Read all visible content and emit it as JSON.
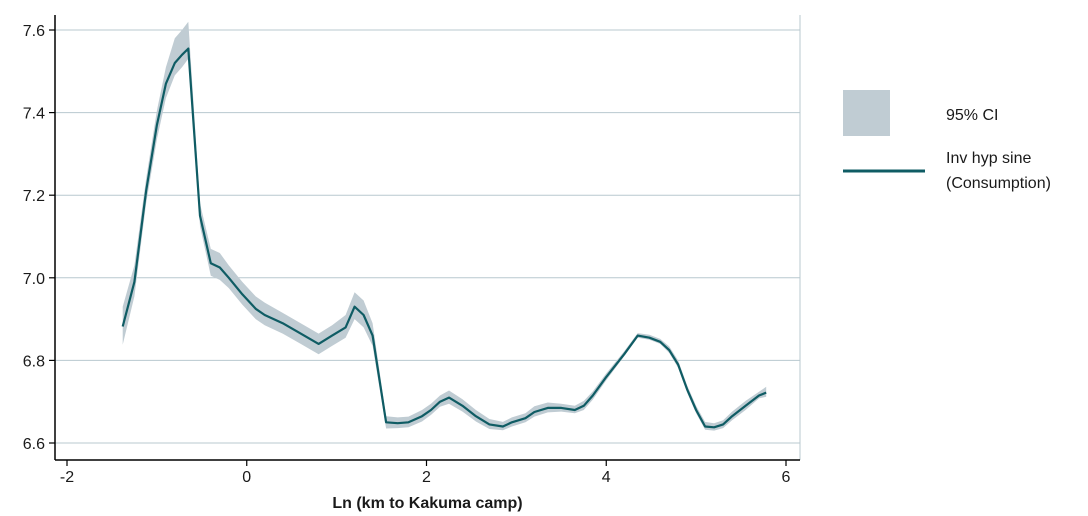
{
  "chart_data": {
    "type": "line",
    "title": "",
    "xlabel": "Ln (km to Kakuma camp)",
    "ylabel": "",
    "xlim": [
      -2.2,
      6.0
    ],
    "ylim": [
      6.58,
      7.63
    ],
    "xticks": [
      -2,
      0,
      2,
      4,
      6
    ],
    "xtick_labels": [
      "-2",
      "0",
      "2",
      "4",
      "6"
    ],
    "yticks": [
      6.6,
      6.8,
      7.0,
      7.2,
      7.4,
      7.6
    ],
    "ytick_labels": [
      "6.6",
      "6.8",
      "7.0",
      "7.2",
      "7.4",
      "7.6"
    ],
    "grid": "horizontal",
    "legend_position": "right",
    "colors": {
      "line": "#0f5c64",
      "band": "#c0ccd3",
      "grid": "#b8c8cf",
      "axis": "#000000"
    },
    "series": [
      {
        "name": "Inv hyp sine (Consumption)",
        "kind": "line",
        "x": [
          -1.38,
          -1.25,
          -1.12,
          -1.0,
          -0.9,
          -0.8,
          -0.72,
          -0.65,
          -0.52,
          -0.4,
          -0.3,
          -0.2,
          -0.05,
          0.1,
          0.2,
          0.4,
          0.6,
          0.8,
          0.95,
          1.1,
          1.2,
          1.3,
          1.4,
          1.55,
          1.68,
          1.8,
          1.95,
          2.05,
          2.15,
          2.25,
          2.4,
          2.55,
          2.7,
          2.85,
          2.95,
          3.1,
          3.2,
          3.35,
          3.5,
          3.65,
          3.75,
          3.85,
          4.0,
          4.2,
          4.35,
          4.48,
          4.6,
          4.7,
          4.8,
          4.9,
          5.0,
          5.1,
          5.2,
          5.3,
          5.4,
          5.55,
          5.7,
          5.78
        ],
        "y": [
          6.882,
          6.99,
          7.21,
          7.37,
          7.47,
          7.52,
          7.54,
          7.555,
          7.15,
          7.035,
          7.025,
          7.0,
          6.96,
          6.925,
          6.91,
          6.89,
          6.865,
          6.84,
          6.86,
          6.88,
          6.93,
          6.91,
          6.86,
          6.65,
          6.648,
          6.65,
          6.665,
          6.68,
          6.7,
          6.71,
          6.69,
          6.665,
          6.645,
          6.64,
          6.65,
          6.66,
          6.675,
          6.685,
          6.685,
          6.68,
          6.69,
          6.715,
          6.76,
          6.815,
          6.86,
          6.855,
          6.845,
          6.825,
          6.79,
          6.73,
          6.68,
          6.64,
          6.638,
          6.645,
          6.665,
          6.69,
          6.715,
          6.722
        ]
      },
      {
        "name": "95% CI",
        "kind": "band",
        "x": [
          -1.38,
          -1.25,
          -1.12,
          -1.0,
          -0.9,
          -0.8,
          -0.72,
          -0.65,
          -0.52,
          -0.4,
          -0.3,
          -0.2,
          -0.05,
          0.1,
          0.2,
          0.4,
          0.6,
          0.8,
          0.95,
          1.1,
          1.2,
          1.3,
          1.4,
          1.55,
          1.68,
          1.8,
          1.95,
          2.05,
          2.15,
          2.25,
          2.4,
          2.55,
          2.7,
          2.85,
          2.95,
          3.1,
          3.2,
          3.35,
          3.5,
          3.65,
          3.75,
          3.85,
          4.0,
          4.2,
          4.35,
          4.48,
          4.6,
          4.7,
          4.8,
          4.9,
          5.0,
          5.1,
          5.2,
          5.3,
          5.4,
          5.55,
          5.7,
          5.78
        ],
        "lower": [
          6.838,
          6.955,
          7.18,
          7.335,
          7.435,
          7.49,
          7.51,
          7.53,
          7.125,
          7.005,
          6.995,
          6.975,
          6.935,
          6.9,
          6.885,
          6.865,
          6.84,
          6.815,
          6.835,
          6.855,
          6.9,
          6.88,
          6.835,
          6.635,
          6.636,
          6.638,
          6.652,
          6.668,
          6.688,
          6.695,
          6.676,
          6.652,
          6.634,
          6.631,
          6.64,
          6.65,
          6.664,
          6.674,
          6.676,
          6.672,
          6.68,
          6.705,
          6.752,
          6.81,
          6.855,
          6.85,
          6.84,
          6.818,
          6.782,
          6.722,
          6.672,
          6.632,
          6.63,
          6.636,
          6.655,
          6.68,
          6.708,
          6.712
        ],
        "upper": [
          6.93,
          7.03,
          7.24,
          7.405,
          7.51,
          7.58,
          7.6,
          7.62,
          7.18,
          7.07,
          7.06,
          7.03,
          6.99,
          6.955,
          6.94,
          6.915,
          6.89,
          6.865,
          6.885,
          6.91,
          6.965,
          6.945,
          6.89,
          6.665,
          6.662,
          6.664,
          6.68,
          6.695,
          6.715,
          6.727,
          6.706,
          6.68,
          6.658,
          6.651,
          6.662,
          6.672,
          6.689,
          6.698,
          6.695,
          6.69,
          6.702,
          6.725,
          6.769,
          6.822,
          6.866,
          6.862,
          6.852,
          6.834,
          6.8,
          6.74,
          6.69,
          6.651,
          6.648,
          6.655,
          6.676,
          6.702,
          6.724,
          6.736
        ]
      }
    ]
  },
  "legend": {
    "ci_label": "95% CI",
    "line_label_1": "Inv hyp sine",
    "line_label_2": "(Consumption)"
  }
}
